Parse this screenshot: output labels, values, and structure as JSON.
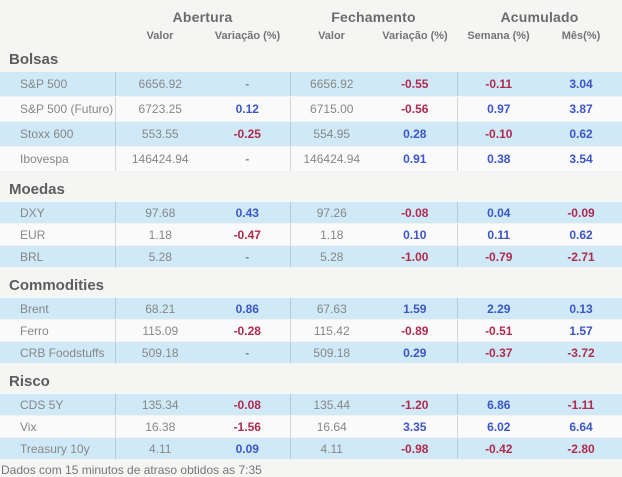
{
  "header": {
    "groups": [
      {
        "label": "Abertura",
        "subs": [
          "Valor",
          "Variação (%)"
        ]
      },
      {
        "label": "Fechamento",
        "subs": [
          "Valor",
          "Variação (%)"
        ]
      },
      {
        "label": "Acumulado",
        "subs": [
          "Semana (%)",
          "Mês(%)"
        ]
      }
    ]
  },
  "sections": [
    {
      "title": "Bolsas",
      "rows": [
        {
          "label": "S&P 500",
          "values": [
            "6656.92",
            "-",
            "6656.92",
            "-0.55",
            "-0.11",
            "3.04"
          ]
        },
        {
          "label": "S&P 500 (Futuro)",
          "values": [
            "6723.25",
            "0.12",
            "6715.00",
            "-0.56",
            "0.97",
            "3.87"
          ]
        },
        {
          "label": "Stoxx 600",
          "values": [
            "553.55",
            "-0.25",
            "554.95",
            "0.28",
            "-0.10",
            "0.62"
          ]
        },
        {
          "label": "Ibovespa",
          "values": [
            "146424.94",
            "-",
            "146424.94",
            "0.91",
            "0.38",
            "3.54"
          ]
        }
      ]
    },
    {
      "title": "Moedas",
      "rows": [
        {
          "label": "DXY",
          "values": [
            "97.68",
            "0.43",
            "97.26",
            "-0.08",
            "0.04",
            "-0.09"
          ]
        },
        {
          "label": "EUR",
          "values": [
            "1.18",
            "-0.47",
            "1.18",
            "0.10",
            "0.11",
            "0.62"
          ]
        },
        {
          "label": "BRL",
          "values": [
            "5.28",
            "-",
            "5.28",
            "-1.00",
            "-0.79",
            "-2.71"
          ]
        }
      ]
    },
    {
      "title": "Commodities",
      "rows": [
        {
          "label": "Brent",
          "values": [
            "68.21",
            "0.86",
            "67.63",
            "1.59",
            "2.29",
            "0.13"
          ]
        },
        {
          "label": "Ferro",
          "values": [
            "115.09",
            "-0.28",
            "115.42",
            "-0.89",
            "-0.51",
            "1.57"
          ]
        },
        {
          "label": "CRB Foodstuffs",
          "values": [
            "509.18",
            "-",
            "509.18",
            "0.29",
            "-0.37",
            "-3.72"
          ]
        }
      ]
    },
    {
      "title": "Risco",
      "rows": [
        {
          "label": "CDS 5Y",
          "values": [
            "135.34",
            "-0.08",
            "135.44",
            "-1.20",
            "6.86",
            "-1.11"
          ]
        },
        {
          "label": "Vix",
          "values": [
            "16.38",
            "-1.56",
            "16.64",
            "3.35",
            "6.02",
            "6.64"
          ]
        },
        {
          "label": "Treasury 10y",
          "values": [
            "4.11",
            "0.09",
            "4.11",
            "-0.98",
            "-0.42",
            "-2.80"
          ]
        }
      ]
    }
  ],
  "footer": {
    "text": "Dados com 15 minutos de atraso obtidos as 7:35"
  },
  "colors": {
    "positive": "#3c55c8",
    "negative": "#b02a50",
    "row_highlight": "#cfeaf6",
    "page_background": "#f5f5f4"
  }
}
